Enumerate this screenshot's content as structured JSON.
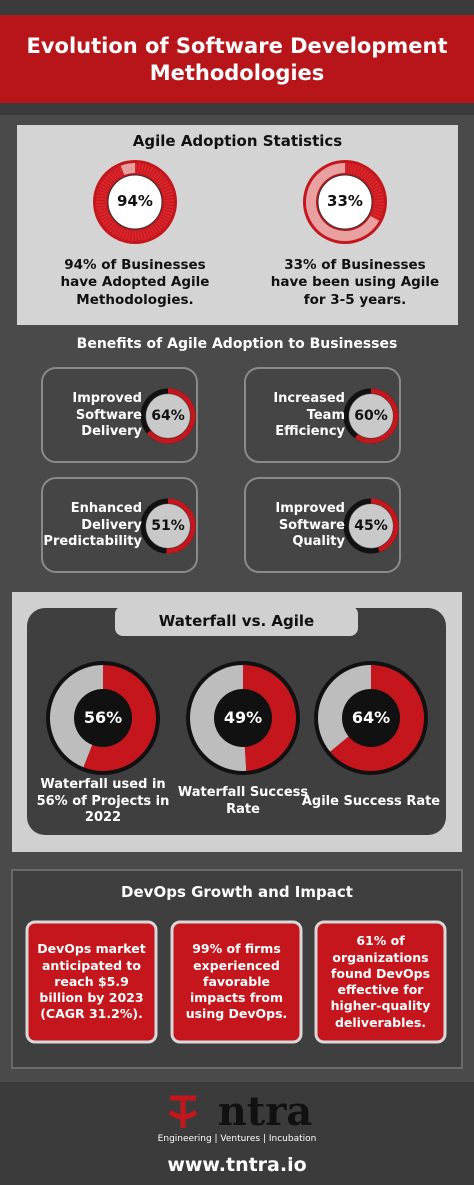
{
  "title": "Evolution of Software Development Methodologies",
  "agile_stats": {
    "heading": "Agile Adoption Statistics",
    "items": [
      {
        "value": 94,
        "label": "94%",
        "caption": "94% of Businesses have Adopted Agile Methodologies."
      },
      {
        "value": 33,
        "label": "33%",
        "caption": "33% of Businesses have been using Agile for 3-5 years."
      }
    ]
  },
  "benefits": {
    "heading": "Benefits of Agile Adoption to Businesses",
    "items": [
      {
        "text": "Improved Software Delivery",
        "value": 64,
        "label": "64%"
      },
      {
        "text": "Increased Team Efficiency",
        "value": 60,
        "label": "60%"
      },
      {
        "text": "Enhanced Delivery Predictability",
        "value": 51,
        "label": "51%"
      },
      {
        "text": "Improved Software Quality",
        "value": 45,
        "label": "45%"
      }
    ]
  },
  "waterfall": {
    "heading": "Waterfall vs. Agile",
    "items": [
      {
        "value": 56,
        "label": "56%",
        "caption": "Waterfall used in 56% of Projects in 2022"
      },
      {
        "value": 49,
        "label": "49%",
        "caption": "Waterfall Success Rate"
      },
      {
        "value": 64,
        "label": "64%",
        "caption": "Agile Success Rate"
      }
    ]
  },
  "devops": {
    "heading": "DevOps Growth and Impact",
    "cards": [
      "DevOps market anticipated to reach $5.9 billion by 2023 (CAGR 31.2%).",
      "99% of firms experienced favorable impacts from using DevOps.",
      "61% of organizations found DevOps effective for higher-quality deliverables."
    ]
  },
  "footer": {
    "brand": "ntra",
    "tagline": "Engineering | Ventures | Incubation",
    "url": "www.tntra.io"
  }
}
